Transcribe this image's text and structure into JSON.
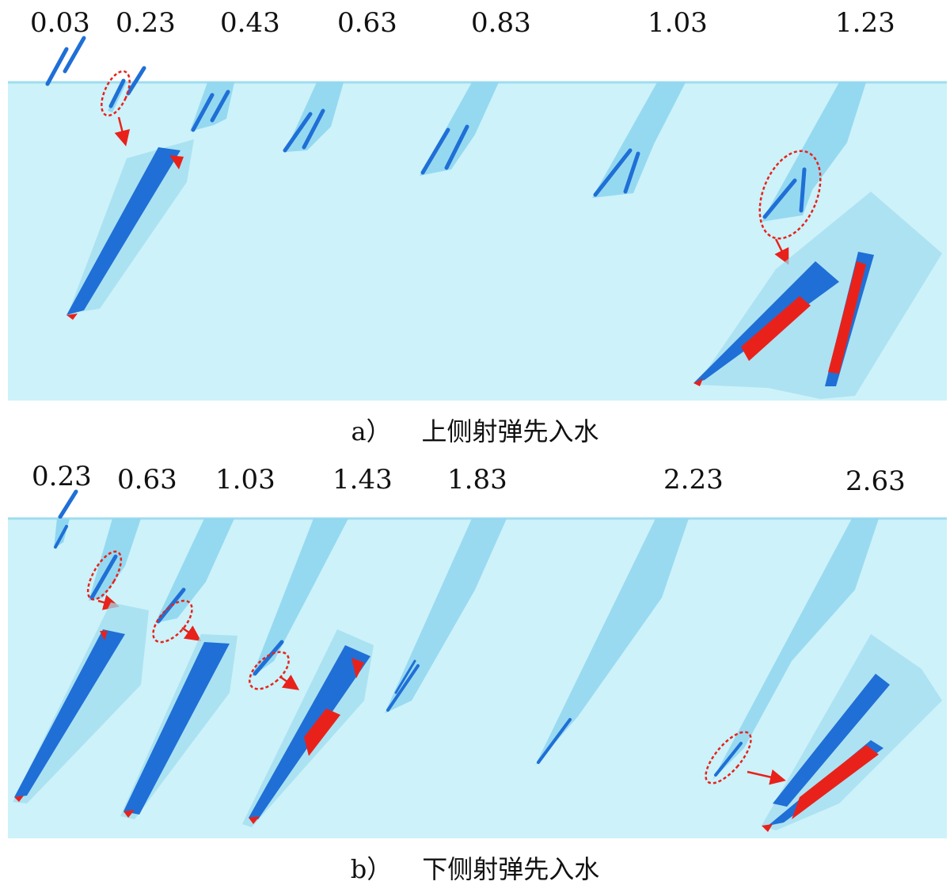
{
  "panel_a": {
    "times": [
      "0.03",
      "0.23",
      "0.43",
      "0.63",
      "0.83",
      "1.03",
      "1.23"
    ],
    "caption_letter": "a）",
    "caption_text": "上侧射弹先入水"
  },
  "panel_b": {
    "times": [
      "0.23",
      "0.63",
      "1.03",
      "1.43",
      "1.83",
      "2.23",
      "2.63"
    ],
    "caption_letter": "b）",
    "caption_text": "下侧射弹先入水"
  },
  "colors": {
    "water": "#cdf2f9",
    "cavity": "#8fd6f0",
    "projectile": "#1f6fd6",
    "vapor": "#e8221b",
    "highlight": "#e8221b"
  }
}
